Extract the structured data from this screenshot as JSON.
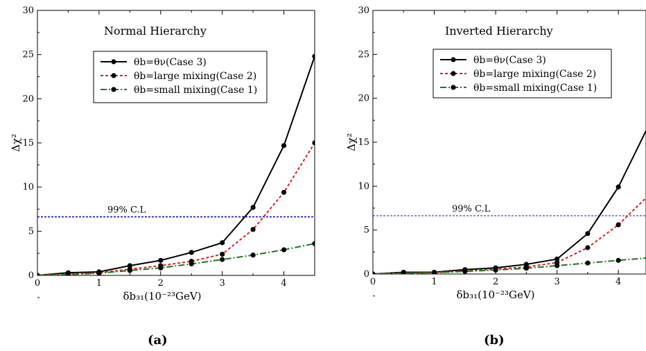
{
  "chart_data": [
    {
      "type": "line",
      "caption": "(a)",
      "title": "Normal Hierarchy",
      "xlabel": "δb₃₁(10⁻²³GeV)",
      "ylabel": "Δχ²",
      "xlim": [
        0,
        4.5
      ],
      "ylim": [
        0,
        30
      ],
      "xticks": [
        0,
        1,
        2,
        3,
        4
      ],
      "yticks": [
        0,
        5,
        10,
        15,
        20,
        25,
        30
      ],
      "reference_line": {
        "y": 6.63,
        "label": "99% C.L",
        "color": "#1010c8"
      },
      "legend_position": "top-right",
      "x": [
        0,
        0.5,
        1,
        1.5,
        2,
        2.5,
        3,
        3.5,
        4,
        4.5
      ],
      "series": [
        {
          "name": "θb=θν(Case 3)",
          "color": "#000000",
          "style": "solid",
          "values": [
            0,
            0.3,
            0.4,
            1.1,
            1.7,
            2.6,
            3.7,
            7.7,
            14.7,
            24.8
          ]
        },
        {
          "name": "θb=large mixing(Case 2)",
          "color": "#e31a1c",
          "style": "dotted",
          "values": [
            0,
            0.15,
            0.3,
            0.7,
            1.1,
            1.6,
            2.4,
            5.2,
            9.4,
            15.0
          ]
        },
        {
          "name": "θb=small mixing(Case 1)",
          "color": "#1a7a1a",
          "style": "dashdot",
          "values": [
            0,
            0.1,
            0.25,
            0.55,
            0.85,
            1.3,
            1.8,
            2.3,
            2.9,
            3.6
          ]
        }
      ]
    },
    {
      "type": "line",
      "caption": "(b)",
      "title": "Inverted Hierarchy",
      "xlabel": "δb₃₁(10⁻²³GeV)",
      "ylabel": "Δχ²",
      "xlim": [
        0,
        4.45
      ],
      "ylim": [
        0,
        30
      ],
      "xticks": [
        0,
        1,
        2,
        3,
        4
      ],
      "yticks": [
        0,
        5,
        10,
        15,
        20,
        25,
        30
      ],
      "reference_line": {
        "y": 6.63,
        "label": "99% C.L",
        "color": "#1010c8"
      },
      "legend_position": "top-right",
      "x": [
        0,
        0.5,
        1,
        1.5,
        2,
        2.5,
        3,
        3.5,
        4,
        4.5
      ],
      "series": [
        {
          "name": "θb=θν(Case 3)",
          "color": "#000000",
          "style": "solid",
          "values": [
            0,
            0.2,
            0.2,
            0.5,
            0.7,
            1.1,
            1.7,
            4.6,
            9.9,
            17.0
          ]
        },
        {
          "name": "θb=large mixing(Case 2)",
          "color": "#e31a1c",
          "style": "dotted",
          "values": [
            0,
            0.1,
            0.15,
            0.35,
            0.55,
            0.8,
            1.3,
            3.0,
            5.6,
            9.0
          ]
        },
        {
          "name": "θb=small mixing(Case 1)",
          "color": "#1a7a1a",
          "style": "dashdot",
          "values": [
            0,
            0.1,
            0.15,
            0.3,
            0.45,
            0.65,
            0.95,
            1.25,
            1.55,
            1.85
          ]
        }
      ]
    }
  ]
}
